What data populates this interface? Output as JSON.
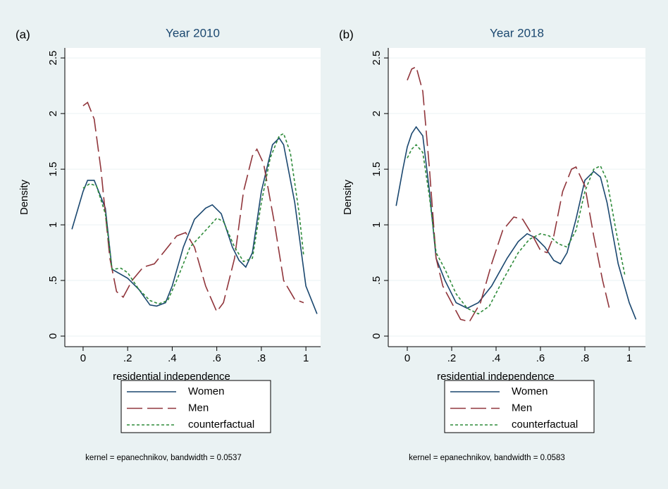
{
  "chart_data": [
    {
      "type": "line",
      "panel_label": "(a)",
      "title": "Year 2010",
      "ylabel": "Density",
      "xlabel": "residential independence",
      "note": "kernel = epanechnikov, bandwidth = 0.0537",
      "grid": true,
      "xlim": [
        -0.082,
        1.066
      ],
      "ylim": [
        -0.095,
        2.59
      ],
      "xticks": [
        0,
        {
          "value": 0.2,
          "label": ".2"
        },
        {
          "value": 0.4,
          "label": ".4"
        },
        {
          "value": 0.6,
          "label": ".6"
        },
        {
          "value": 0.8,
          "label": ".8"
        },
        1
      ],
      "yticks": [
        0,
        {
          "value": 0.5,
          "label": ".5"
        },
        1,
        1.5,
        2,
        2.5
      ],
      "series": [
        {
          "name": "Women",
          "color": "#1a476f",
          "style": "solid",
          "x": [
            -0.05,
            0,
            0.02,
            0.05,
            0.1,
            0.13,
            0.2,
            0.25,
            0.3,
            0.33,
            0.37,
            0.4,
            0.45,
            0.5,
            0.55,
            0.58,
            0.62,
            0.67,
            0.7,
            0.73,
            0.76,
            0.8,
            0.85,
            0.88,
            0.9,
            0.95,
            1.0,
            1.05
          ],
          "values": [
            0.96,
            1.3,
            1.4,
            1.4,
            1.15,
            0.6,
            0.52,
            0.42,
            0.28,
            0.27,
            0.3,
            0.45,
            0.8,
            1.05,
            1.15,
            1.18,
            1.1,
            0.8,
            0.68,
            0.62,
            0.75,
            1.3,
            1.72,
            1.78,
            1.72,
            1.2,
            0.45,
            0.2
          ]
        },
        {
          "name": "Men",
          "color": "#90353b",
          "style": "longdash",
          "x": [
            0,
            0.02,
            0.05,
            0.08,
            0.12,
            0.15,
            0.18,
            0.22,
            0.27,
            0.32,
            0.36,
            0.42,
            0.46,
            0.5,
            0.55,
            0.6,
            0.63,
            0.68,
            0.72,
            0.76,
            0.78,
            0.81,
            0.86,
            0.9,
            0.95,
            0.99
          ],
          "values": [
            2.07,
            2.1,
            1.95,
            1.5,
            0.7,
            0.4,
            0.35,
            0.5,
            0.62,
            0.65,
            0.75,
            0.9,
            0.93,
            0.8,
            0.45,
            0.22,
            0.3,
            0.7,
            1.3,
            1.62,
            1.68,
            1.55,
            1.0,
            0.5,
            0.33,
            0.3
          ]
        },
        {
          "name": "counterfactual",
          "color": "#2e8b3a",
          "style": "shortdash",
          "x": [
            0,
            0.03,
            0.06,
            0.1,
            0.13,
            0.17,
            0.2,
            0.25,
            0.3,
            0.34,
            0.38,
            0.42,
            0.48,
            0.55,
            0.6,
            0.63,
            0.68,
            0.72,
            0.76,
            0.8,
            0.84,
            0.88,
            0.9,
            0.93,
            0.97,
            0.99
          ],
          "values": [
            1.33,
            1.37,
            1.35,
            1.1,
            0.6,
            0.61,
            0.57,
            0.42,
            0.32,
            0.29,
            0.32,
            0.5,
            0.8,
            0.95,
            1.06,
            1.03,
            0.8,
            0.67,
            0.7,
            1.2,
            1.6,
            1.8,
            1.82,
            1.65,
            1.1,
            0.72
          ]
        }
      ]
    },
    {
      "type": "line",
      "panel_label": "(b)",
      "title": "Year 2018",
      "ylabel": "Density",
      "xlabel": "residential independence",
      "note": "kernel = epanechnikov, bandwidth = 0.0583",
      "grid": true,
      "xlim": [
        -0.0857,
        1.073
      ],
      "ylim": [
        -0.095,
        2.59
      ],
      "xticks": [
        0,
        {
          "value": 0.2,
          "label": ".2"
        },
        {
          "value": 0.4,
          "label": ".4"
        },
        {
          "value": 0.6,
          "label": ".6"
        },
        {
          "value": 0.8,
          "label": ".8"
        },
        1
      ],
      "yticks": [
        0,
        {
          "value": 0.5,
          "label": ".5"
        },
        1,
        1.5,
        2,
        2.5
      ],
      "series": [
        {
          "name": "Women",
          "color": "#1a476f",
          "style": "solid",
          "x": [
            -0.05,
            -0.02,
            0,
            0.02,
            0.04,
            0.07,
            0.1,
            0.13,
            0.17,
            0.22,
            0.27,
            0.32,
            0.38,
            0.45,
            0.5,
            0.54,
            0.58,
            0.62,
            0.66,
            0.69,
            0.72,
            0.76,
            0.8,
            0.84,
            0.87,
            0.9,
            0.95,
            1.0,
            1.03
          ],
          "values": [
            1.17,
            1.5,
            1.7,
            1.82,
            1.88,
            1.8,
            1.3,
            0.7,
            0.5,
            0.3,
            0.25,
            0.3,
            0.45,
            0.7,
            0.85,
            0.92,
            0.88,
            0.8,
            0.68,
            0.65,
            0.75,
            1.05,
            1.4,
            1.48,
            1.43,
            1.2,
            0.65,
            0.3,
            0.15
          ]
        },
        {
          "name": "Men",
          "color": "#90353b",
          "style": "longdash",
          "x": [
            0,
            0.02,
            0.04,
            0.07,
            0.1,
            0.13,
            0.16,
            0.2,
            0.24,
            0.28,
            0.33,
            0.38,
            0.43,
            0.48,
            0.52,
            0.56,
            0.6,
            0.63,
            0.66,
            0.7,
            0.74,
            0.76,
            0.8,
            0.84,
            0.88,
            0.91
          ],
          "values": [
            2.3,
            2.4,
            2.42,
            2.2,
            1.5,
            0.7,
            0.45,
            0.3,
            0.15,
            0.13,
            0.3,
            0.65,
            0.95,
            1.07,
            1.05,
            0.92,
            0.77,
            0.75,
            0.9,
            1.3,
            1.5,
            1.52,
            1.35,
            0.9,
            0.5,
            0.25
          ]
        },
        {
          "name": "counterfactual",
          "color": "#2e8b3a",
          "style": "shortdash",
          "x": [
            0,
            0.02,
            0.04,
            0.07,
            0.1,
            0.13,
            0.17,
            0.22,
            0.27,
            0.32,
            0.37,
            0.43,
            0.5,
            0.55,
            0.6,
            0.64,
            0.68,
            0.72,
            0.76,
            0.8,
            0.84,
            0.87,
            0.9,
            0.94,
            0.98
          ],
          "values": [
            1.6,
            1.68,
            1.72,
            1.65,
            1.25,
            0.75,
            0.6,
            0.38,
            0.25,
            0.2,
            0.27,
            0.5,
            0.75,
            0.87,
            0.92,
            0.9,
            0.83,
            0.8,
            0.95,
            1.3,
            1.5,
            1.53,
            1.4,
            0.95,
            0.55
          ]
        }
      ]
    }
  ]
}
